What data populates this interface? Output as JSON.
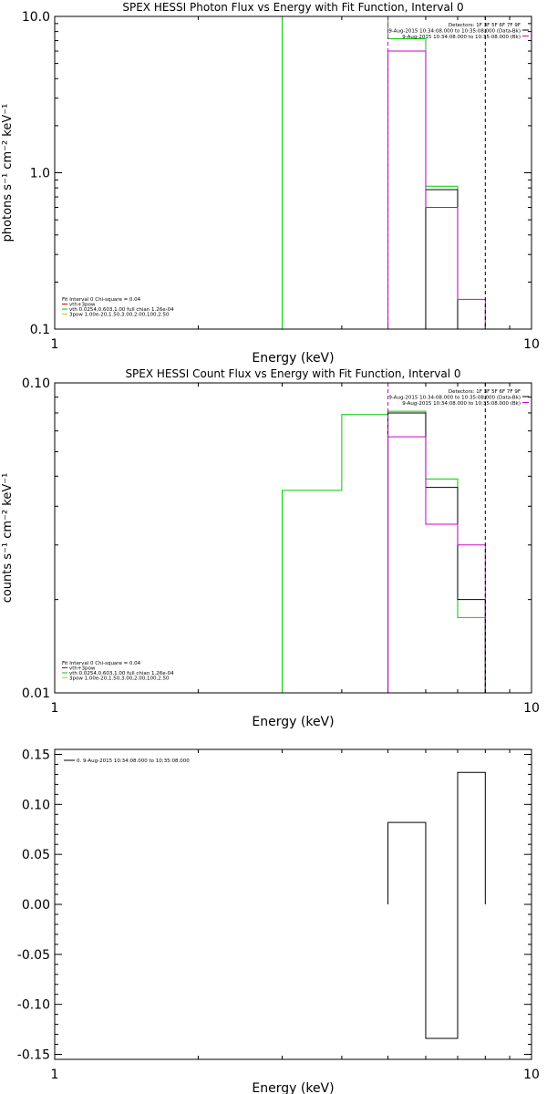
{
  "chart_data": [
    {
      "type": "line",
      "title": "SPEX HESSI Photon Flux vs Energy with Fit Function, Interval 0",
      "xlabel": "Energy (keV)",
      "ylabel": "photons s⁻¹ cm⁻² keV⁻¹",
      "xscale": "log",
      "yscale": "log",
      "xlim": [
        1,
        10
      ],
      "ylim": [
        0.1,
        10
      ],
      "xticks": [
        "1",
        "10"
      ],
      "yticks": [
        {
          "v": 0.1,
          "label": "0.1"
        },
        {
          "v": 1,
          "label": "1.0"
        },
        {
          "v": 10,
          "label": "10.0"
        }
      ],
      "header_lines": [
        "Detectors: 1F 3F 5F 6F 7F 9F",
        "9-Aug-2015 10:34:08.000 to 10:35:08.000 (Data-Bk)",
        "9-Aug-2015 10:34:08.000 to 10:35:08.000 (Bk)"
      ],
      "legend_lines": [
        "Fit Interval 0   Chi-square = 0.04",
        "vth+3pow",
        "vth 0.0254,0.603,1.00  full chian 1.26e-04",
        "3pow 1.00e-20,1.50,3.00,2.00,100,2.50"
      ],
      "series": [
        {
          "name": "vth+3pow",
          "color": "#00cc00",
          "edges": [
            3,
            5,
            6,
            7,
            8
          ],
          "values": [
            100,
            7.2,
            0.82,
            0.1
          ]
        },
        {
          "color": "#000000",
          "edges": [
            6,
            7,
            8
          ],
          "values": [
            0.78,
            0.1
          ]
        },
        {
          "color": "#cc00cc",
          "edges": [
            5,
            6,
            7,
            8
          ],
          "values": [
            6.0,
            0.6,
            0.155
          ]
        }
      ],
      "dashed_vlines": [
        {
          "x": 5,
          "color": "#cc00cc"
        },
        {
          "x": 8,
          "color": "#000000"
        }
      ]
    },
    {
      "type": "line",
      "title": "SPEX HESSI Count Flux vs Energy with Fit Function, Interval 0",
      "xlabel": "Energy (keV)",
      "ylabel": "counts s⁻¹ cm⁻² keV⁻¹",
      "xscale": "log",
      "yscale": "log",
      "xlim": [
        1,
        10
      ],
      "ylim": [
        0.01,
        0.1
      ],
      "xticks": [
        "1",
        "10"
      ],
      "yticks": [
        {
          "v": 0.01,
          "label": "0.01"
        },
        {
          "v": 0.1,
          "label": "0.10"
        }
      ],
      "header_lines": [
        "Detectors: 1F 3F 5F 6F 7F 9F",
        "9-Aug-2015 10:34:08.000 to 10:35:08.000 (Data-Bk)",
        "9-Aug-2015 10:34:08.000 to 10:35:08.000 (Bk)"
      ],
      "legend_lines": [
        "Fit Interval 0   Chi-square = 0.04",
        "vth+3pow",
        "vth 0.0254,0.603,1.00  full chian 1.26e-04",
        "3pow 1.00e-20,1.50,3.00,2.00,100,2.50"
      ],
      "series": [
        {
          "name": "vth+3pow",
          "color": "#00cc00",
          "edges": [
            3,
            4,
            5,
            6,
            7,
            8
          ],
          "values": [
            0.045,
            0.079,
            0.081,
            0.049,
            0.0175
          ]
        },
        {
          "color": "#000000",
          "edges": [
            5,
            6,
            7,
            8
          ],
          "values": [
            0.08,
            0.046,
            0.02
          ]
        },
        {
          "color": "#cc00cc",
          "edges": [
            5,
            6,
            7,
            8
          ],
          "values": [
            0.067,
            0.035,
            0.03
          ]
        }
      ],
      "dashed_vlines": [
        {
          "x": 5,
          "color": "#cc00cc"
        },
        {
          "x": 8,
          "color": "#000000"
        }
      ]
    },
    {
      "type": "line",
      "title": "",
      "xlabel": "Energy (keV)",
      "ylabel": "",
      "xscale": "log",
      "yscale": "linear",
      "xlim": [
        1,
        10
      ],
      "ylim": [
        -0.155,
        0.155
      ],
      "xticks": [
        "1",
        "10"
      ],
      "yticks": [
        {
          "v": 0.15,
          "label": "0.15"
        },
        {
          "v": 0.1,
          "label": "0.10"
        },
        {
          "v": 0.05,
          "label": "0.05"
        },
        {
          "v": 0,
          "label": "0.00"
        },
        {
          "v": -0.05,
          "label": "-0.05"
        },
        {
          "v": -0.1,
          "label": "-0.10"
        },
        {
          "v": -0.15,
          "label": "-0.15"
        }
      ],
      "legend_lines": [
        "0.  9-Aug-2015 10:34:08.000 to 10:35:08.000"
      ],
      "series": [
        {
          "color": "#000000",
          "edges": [
            5,
            6,
            7,
            8
          ],
          "values": [
            0.082,
            -0.134,
            0.132
          ]
        }
      ]
    }
  ]
}
